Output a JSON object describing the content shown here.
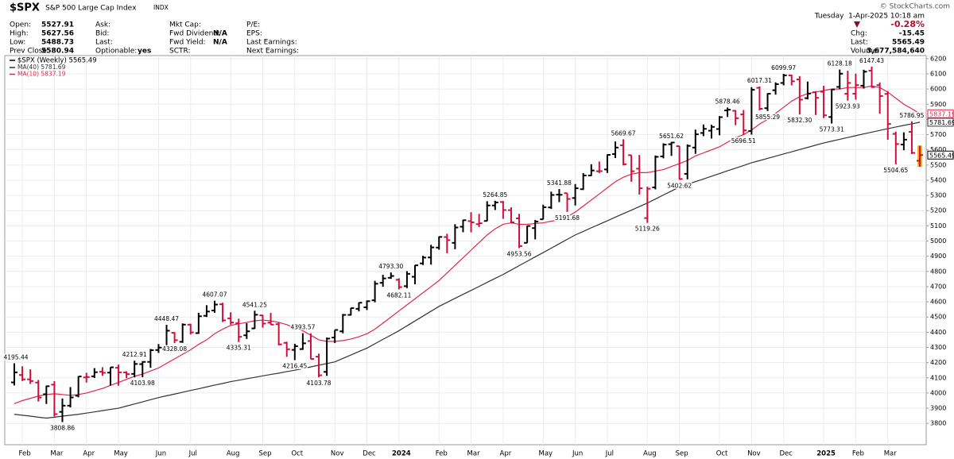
{
  "header": {
    "symbol": "$SPX",
    "name": "S&P 500 Large Cap Index",
    "exchange": "INDX",
    "copyright": "© StockCharts.com",
    "timestamp": "Tuesday  1-Apr-2025 10:18 am",
    "change_pct": "-0.28%",
    "columns": [
      [
        {
          "label": "Open:",
          "value": "5527.91"
        },
        {
          "label": "High:",
          "value": "5627.56"
        },
        {
          "label": "Low:",
          "value": "5488.73"
        },
        {
          "label": "Prev Close:",
          "value": "5580.94"
        }
      ],
      [
        {
          "label": "Ask:"
        },
        {
          "label": "Bid:"
        },
        {
          "label": "Last:"
        },
        {
          "label": "Optionable:",
          "value": "yes"
        }
      ],
      [
        {
          "label": "Mkt Cap:"
        },
        {
          "label": "Fwd Dividend:",
          "value": "N/A"
        },
        {
          "label": "Fwd Yield:",
          "value": "N/A"
        },
        {
          "label": "SCTR:"
        }
      ],
      [
        {
          "label": "P/E:"
        },
        {
          "label": "EPS:"
        },
        {
          "label": "Last Earnings:"
        },
        {
          "label": "Next Earnings:"
        }
      ]
    ],
    "right": [
      {
        "label": "Chg:",
        "value": "-15.45"
      },
      {
        "label": "Last:",
        "value": "5565.49"
      },
      {
        "label": "Volume:",
        "value": "3,677,584,640"
      }
    ]
  },
  "chart_data": {
    "type": "ohlc",
    "ylim": [
      3660,
      6220
    ],
    "yticks": [
      3800,
      3900,
      4000,
      4100,
      4200,
      4300,
      4400,
      4500,
      4600,
      4700,
      4800,
      4900,
      5000,
      5100,
      5200,
      5300,
      5400,
      5500,
      5600,
      5700,
      5800,
      5900,
      6000,
      6100,
      6200
    ],
    "grid": true,
    "up_color": "#000000",
    "down_color": "#d0103a",
    "categories": [
      null,
      "Feb",
      null,
      null,
      null,
      "Mar",
      null,
      null,
      null,
      "Apr",
      null,
      null,
      null,
      "May",
      null,
      null,
      null,
      null,
      "Jun",
      null,
      null,
      null,
      "Jul",
      null,
      null,
      null,
      null,
      "Aug",
      null,
      null,
      null,
      "Sep",
      null,
      null,
      null,
      "Oct",
      null,
      null,
      null,
      null,
      "Nov",
      null,
      null,
      null,
      "Dec",
      null,
      null,
      null,
      "2024",
      null,
      null,
      null,
      null,
      "Feb",
      null,
      null,
      null,
      "Mar",
      null,
      null,
      null,
      "Apr",
      null,
      null,
      null,
      null,
      "May",
      null,
      null,
      null,
      "Jun",
      null,
      null,
      null,
      "Jul",
      null,
      null,
      null,
      null,
      "Aug",
      null,
      null,
      null,
      "Sep",
      null,
      null,
      null,
      null,
      "Oct",
      null,
      null,
      null,
      "Nov",
      null,
      null,
      null,
      "Dec",
      null,
      null,
      null,
      null,
      "2025",
      null,
      null,
      null,
      "Feb",
      null,
      null,
      null,
      "Mar",
      null,
      null,
      null,
      null
    ],
    "ohlc": {
      "name": "$SPX (Weekly) 5565.49",
      "open": [
        4070,
        4119,
        4090,
        4069,
        3992,
        4055,
        3876,
        3917,
        3982,
        4103,
        4110,
        4140,
        4134,
        4166,
        4136,
        4126,
        4190,
        4205,
        4283,
        4308,
        4396,
        4337,
        4450,
        4394,
        4508,
        4543,
        4584,
        4491,
        4459,
        4380,
        4425,
        4511,
        4463,
        4453,
        4330,
        4284,
        4289,
        4342,
        4239,
        4139,
        4365,
        4406,
        4514,
        4554,
        4564,
        4610,
        4725,
        4758,
        4745,
        4703,
        4765,
        4853,
        4892,
        4957,
        5026,
        4988,
        5094,
        5131,
        5111,
        5132,
        5234,
        5257,
        5203,
        5149,
        4988,
        5085,
        5143,
        5221,
        5305,
        5315,
        5283,
        5341,
        5431,
        5459,
        5471,
        5572,
        5630,
        5565,
        5476,
        5151,
        5353,
        5557,
        5637,
        5624,
        5442,
        5615,
        5711,
        5726,
        5737,
        5859,
        5857,
        5833,
        5724,
        6008,
        5874,
        5992,
        6040,
        6090,
        6063,
        5940,
        5979,
        5982,
        5816,
        6014,
        5969,
        5969,
        6022,
        6121,
        6026,
        5968,
        5705,
        5635,
        5718,
        5527.91
      ],
      "high": [
        4195.44,
        4176,
        4156,
        4086,
        4048,
        4078,
        3964,
        4039,
        4110,
        4133,
        4164,
        4170,
        4170,
        4187,
        4143,
        4212.91,
        4209,
        4290,
        4322,
        4448.47,
        4400,
        4458,
        4456,
        4528,
        4578,
        4607.07,
        4594,
        4531,
        4489,
        4460,
        4541.25,
        4514,
        4527,
        4466,
        4338,
        4324,
        4393.57,
        4393,
        4259,
        4365,
        4415,
        4520,
        4560,
        4595,
        4609,
        4738,
        4778,
        4793.3,
        4755,
        4802,
        4842,
        4903,
        4975,
        5030,
        5048,
        5111,
        5140,
        5190,
        5179,
        5262,
        5264.85,
        5263,
        5222,
        5179,
        5101,
        5139,
        5239,
        5325,
        5341.88,
        5315,
        5375,
        5447,
        5505,
        5523,
        5570,
        5655,
        5669.67,
        5566,
        5566,
        5358,
        5563,
        5643,
        5651.62,
        5625,
        5636,
        5733,
        5767,
        5765,
        5822,
        5878.46,
        5862,
        5862,
        6012,
        6017.31,
        5972,
        6044,
        6099.97,
        6094,
        6085,
        6049,
        5986,
        6021,
        6001,
        6128.18,
        6120,
        6101,
        6127,
        6147.43,
        6043,
        5986,
        5720,
        5715,
        5786.95,
        5627.56
      ],
      "low": [
        4050,
        4079,
        4060,
        3944,
        3928,
        3846,
        3808.86,
        3905,
        3972,
        4069,
        4099,
        4113,
        4049,
        4048,
        4098,
        4103,
        4103.98,
        4166,
        4264,
        4293,
        4328.08,
        4330,
        4385,
        4389,
        4500,
        4528,
        4467,
        4450,
        4335.31,
        4356,
        4422,
        4430,
        4449,
        4314,
        4238,
        4216.45,
        4284,
        4223,
        4103.78,
        4113,
        4329,
        4393,
        4510,
        4537,
        4546,
        4597,
        4699,
        4751,
        4682.11,
        4690,
        4715,
        4842,
        4845,
        4943,
        4920,
        4946,
        5058,
        5057,
        5092,
        5131,
        5204,
        5146,
        5115,
        4953.56,
        4986,
        5011,
        5142,
        5211,
        5256,
        5191.68,
        5234,
        5336,
        5428,
        5447,
        5448,
        5546,
        5497,
        5390,
        5306,
        5119.26,
        5340,
        5544,
        5560,
        5402.62,
        5406,
        5574,
        5690,
        5674,
        5696,
        5816,
        5762,
        5696.51,
        5700,
        5860,
        5855.29,
        5963,
        6024,
        6024,
        5832.3,
        5932,
        5829,
        5809,
        5773.31,
        6000,
        5923.93,
        5930,
        6003,
        6008,
        5837,
        5666,
        5504.65,
        5597,
        5572,
        5488.73
      ],
      "close": [
        4136,
        4090,
        4079,
        3970,
        4045,
        3861,
        3917,
        3971,
        4109,
        4105,
        4137,
        4133,
        4169,
        4136,
        4124,
        4191,
        4205,
        4282,
        4299,
        4410,
        4348,
        4450,
        4399,
        4505,
        4536,
        4582,
        4478,
        4464,
        4370,
        4406,
        4515,
        4457,
        4450,
        4320,
        4288,
        4308,
        4327,
        4224,
        4117,
        4358,
        4415,
        4514,
        4559,
        4594,
        4604,
        4719,
        4754,
        4770,
        4697,
        4784,
        4840,
        4891,
        4958,
        5027,
        5006,
        5089,
        5137,
        5123,
        5117,
        5234,
        5254,
        5204,
        5123,
        4967,
        5099,
        5128,
        5222,
        5303,
        5304,
        5277,
        5347,
        5431,
        5464,
        5460,
        5567,
        5615,
        5505,
        5459,
        5347,
        5344,
        5554,
        5634,
        5648,
        5408,
        5626,
        5702,
        5738,
        5751,
        5815,
        5864,
        5808,
        5728,
        5995,
        5870,
        5969,
        6032,
        6090,
        6051,
        5930,
        5970,
        5942,
        5827,
        5997,
        6101,
        6040,
        6026,
        6114,
        6013,
        5954,
        5770,
        5638,
        5667,
        5580,
        5565.49
      ],
      "high_labels": [
        "4195.44",
        null,
        null,
        null,
        null,
        null,
        null,
        null,
        null,
        null,
        null,
        null,
        null,
        null,
        null,
        "4212.91",
        null,
        null,
        null,
        "4448.47",
        null,
        null,
        null,
        null,
        null,
        "4607.07",
        null,
        null,
        null,
        null,
        "4541.25",
        null,
        null,
        null,
        null,
        null,
        "4393.57",
        null,
        null,
        null,
        null,
        null,
        null,
        null,
        null,
        null,
        null,
        "4793.30",
        null,
        null,
        null,
        null,
        null,
        null,
        null,
        null,
        null,
        null,
        null,
        null,
        "5264.85",
        null,
        null,
        null,
        null,
        null,
        null,
        null,
        "5341.88",
        null,
        null,
        null,
        null,
        null,
        null,
        null,
        "5669.67",
        null,
        null,
        null,
        null,
        null,
        "5651.62",
        null,
        null,
        null,
        null,
        null,
        null,
        "5878.46",
        null,
        null,
        null,
        "6017.31",
        null,
        null,
        "6099.97",
        null,
        null,
        null,
        null,
        null,
        null,
        "6128.18",
        null,
        null,
        null,
        "6147.43",
        null,
        null,
        null,
        null,
        "5786.95",
        null
      ],
      "low_labels": [
        null,
        null,
        null,
        null,
        null,
        null,
        "3808.86",
        null,
        null,
        null,
        null,
        null,
        null,
        null,
        null,
        null,
        "4103.98",
        null,
        null,
        null,
        "4328.08",
        null,
        null,
        null,
        null,
        null,
        null,
        null,
        "4335.31",
        null,
        null,
        null,
        null,
        null,
        null,
        "4216.45",
        null,
        null,
        "4103.78",
        null,
        null,
        null,
        null,
        null,
        null,
        null,
        null,
        null,
        "4682.11",
        null,
        null,
        null,
        null,
        null,
        null,
        null,
        null,
        null,
        null,
        null,
        null,
        null,
        null,
        "4953.56",
        null,
        null,
        null,
        null,
        null,
        "5191.68",
        null,
        null,
        null,
        null,
        null,
        null,
        null,
        null,
        null,
        "5119.26",
        null,
        null,
        null,
        "5402.62",
        null,
        null,
        null,
        null,
        null,
        null,
        null,
        "5696.51",
        null,
        null,
        "5855.29",
        null,
        null,
        null,
        "5832.30",
        null,
        null,
        null,
        "5773.31",
        null,
        "5923.93",
        null,
        null,
        null,
        null,
        null,
        "5504.65",
        null,
        null,
        null
      ]
    },
    "series": [
      {
        "name": "MA(40) 5781.69",
        "color": "#333333",
        "values": [
          3860,
          3854,
          3848,
          3841,
          3835,
          3841,
          3848,
          3854,
          3860,
          3868,
          3876,
          3884,
          3892,
          3900,
          3914,
          3928,
          3942,
          3956,
          3970,
          3982,
          3993,
          4005,
          4017,
          4028,
          4040,
          4052,
          4063,
          4075,
          4084,
          4094,
          4103,
          4113,
          4122,
          4131,
          4141,
          4150,
          4161,
          4172,
          4183,
          4194,
          4205,
          4228,
          4250,
          4273,
          4295,
          4324,
          4353,
          4381,
          4410,
          4442,
          4474,
          4506,
          4538,
          4570,
          4596,
          4623,
          4649,
          4675,
          4701,
          4728,
          4754,
          4780,
          4809,
          4838,
          4867,
          4896,
          4924,
          4953,
          4982,
          5011,
          5040,
          5063,
          5087,
          5110,
          5133,
          5157,
          5180,
          5203,
          5227,
          5250,
          5276,
          5303,
          5329,
          5355,
          5373,
          5391,
          5408,
          5426,
          5444,
          5462,
          5479,
          5497,
          5515,
          5529,
          5544,
          5558,
          5573,
          5587,
          5602,
          5616,
          5631,
          5645,
          5657,
          5669,
          5681,
          5693,
          5705,
          5716,
          5728,
          5739,
          5750,
          5761,
          5771,
          5781.69
        ]
      },
      {
        "name": "MA(10) 5837.19",
        "color": "#e0264a",
        "values": [
          3930,
          3950,
          3965,
          3980,
          3990,
          3995,
          3990,
          3985,
          3990,
          4000,
          4015,
          4030,
          4050,
          4070,
          4090,
          4110,
          4125,
          4145,
          4165,
          4195,
          4225,
          4255,
          4285,
          4320,
          4350,
          4390,
          4420,
          4445,
          4455,
          4465,
          4475,
          4480,
          4475,
          4465,
          4450,
          4430,
          4410,
          4380,
          4350,
          4340,
          4340,
          4345,
          4355,
          4370,
          4390,
          4420,
          4460,
          4500,
          4540,
          4580,
          4620,
          4660,
          4700,
          4740,
          4790,
          4840,
          4890,
          4940,
          4990,
          5040,
          5080,
          5110,
          5120,
          5110,
          5110,
          5115,
          5120,
          5130,
          5140,
          5160,
          5190,
          5230,
          5270,
          5310,
          5350,
          5390,
          5420,
          5440,
          5450,
          5450,
          5460,
          5470,
          5490,
          5510,
          5530,
          5560,
          5580,
          5600,
          5620,
          5650,
          5680,
          5700,
          5730,
          5770,
          5800,
          5840,
          5880,
          5920,
          5950,
          5970,
          5980,
          5990,
          6000,
          6000,
          6010,
          6010,
          6010,
          6020,
          6010,
          5980,
          5940,
          5900,
          5870,
          5837.19
        ]
      }
    ]
  }
}
